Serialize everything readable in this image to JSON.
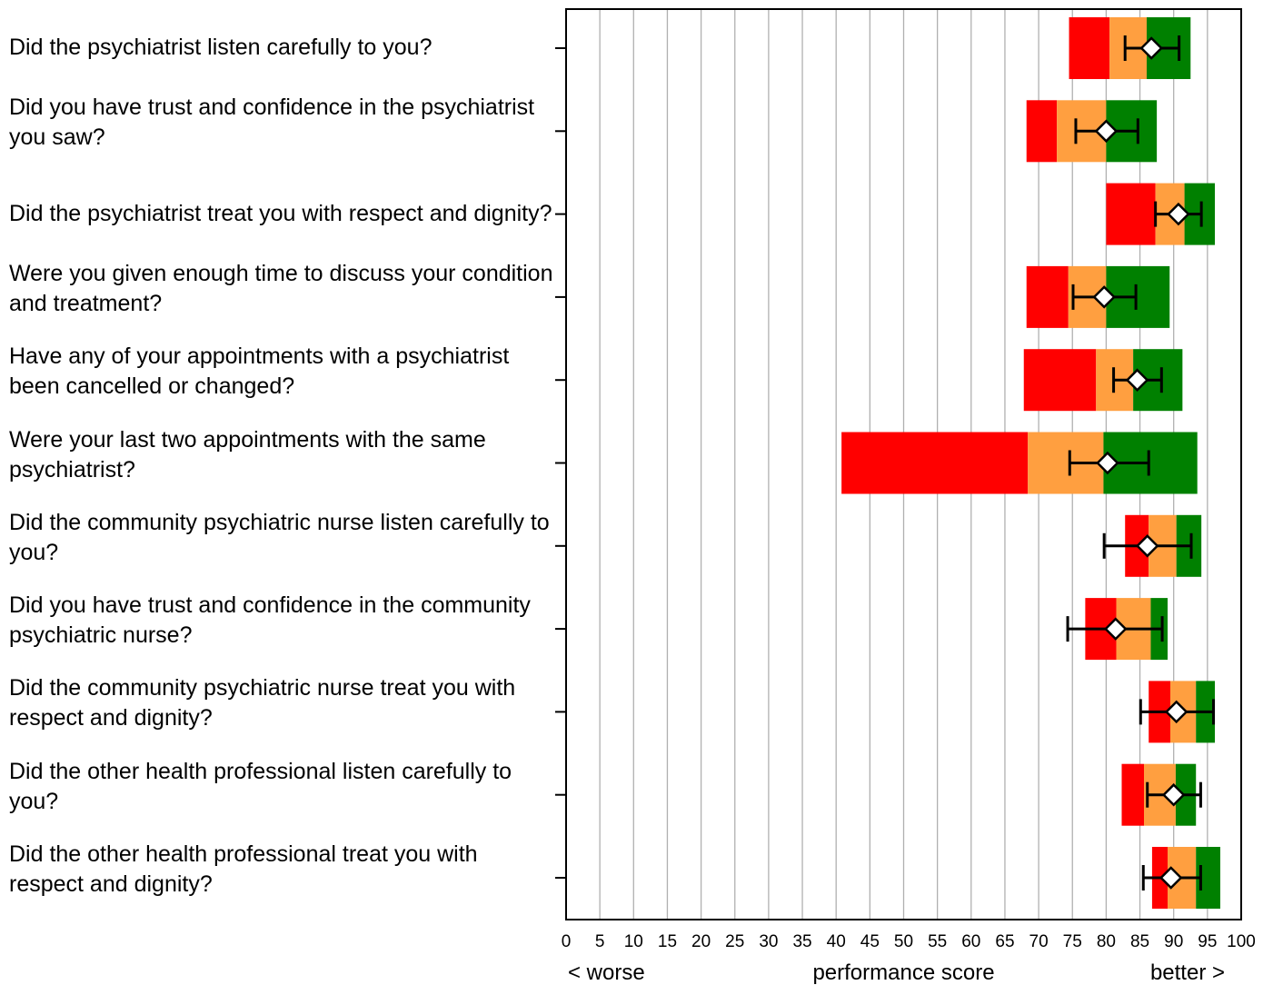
{
  "colors": {
    "red": "#ff0000",
    "orange": "#ff9f40",
    "green": "#008000",
    "grid": "#b0b0b0",
    "axis": "#000000"
  },
  "chart_data": {
    "type": "bar",
    "orientation": "horizontal",
    "xlim": [
      0,
      100
    ],
    "xticks": [
      "0",
      "5",
      "10",
      "15",
      "20",
      "25",
      "30",
      "35",
      "40",
      "45",
      "50",
      "55",
      "60",
      "65",
      "70",
      "75",
      "80",
      "85",
      "90",
      "95",
      "100"
    ],
    "xlabel": "performance score",
    "x_left_note": "< worse",
    "x_right_note": "better >",
    "grid": true,
    "legend": "none",
    "series": [
      {
        "name": "",
        "color": "#ff0000"
      },
      {
        "name": "",
        "color": "#ff9f40"
      },
      {
        "name": "",
        "color": "#008000"
      }
    ],
    "rows": [
      {
        "question": "Did the psychiatrist listen carefully to you?",
        "red": [
          74.5,
          80.5
        ],
        "orange": [
          80.5,
          86.0
        ],
        "green": [
          86.0,
          92.5
        ],
        "score": 86.7,
        "ci": [
          82.8,
          90.8
        ]
      },
      {
        "question": "Did you have trust and confidence in the psychiatrist you saw?",
        "red": [
          68.2,
          72.7
        ],
        "orange": [
          72.7,
          80.0
        ],
        "green": [
          80.0,
          87.5
        ],
        "score": 80.0,
        "ci": [
          75.5,
          84.7
        ]
      },
      {
        "question": "Did the psychiatrist treat you with respect and dignity?",
        "red": [
          80.0,
          87.3
        ],
        "orange": [
          87.3,
          91.6
        ],
        "green": [
          91.6,
          96.1
        ],
        "score": 90.7,
        "ci": [
          87.3,
          94.1
        ]
      },
      {
        "question": "Were you given enough time to discuss your condition and treatment?",
        "red": [
          68.2,
          74.4
        ],
        "orange": [
          74.4,
          80.0
        ],
        "green": [
          80.0,
          89.4
        ],
        "score": 79.7,
        "ci": [
          75.1,
          84.4
        ]
      },
      {
        "question": "Have any of your appointments with a psychiatrist been cancelled or changed?",
        "red": [
          67.8,
          78.5
        ],
        "orange": [
          78.5,
          84.0
        ],
        "green": [
          84.0,
          91.3
        ],
        "score": 84.6,
        "ci": [
          81.1,
          88.2
        ]
      },
      {
        "question": "Were your last two appointments with the same psychiatrist?",
        "red": [
          40.8,
          68.4
        ],
        "orange": [
          68.4,
          79.6
        ],
        "green": [
          79.6,
          93.5
        ],
        "score": 80.2,
        "ci": [
          74.6,
          86.3
        ]
      },
      {
        "question": "Did the community psychiatric nurse listen carefully to you?",
        "red": [
          82.8,
          86.3
        ],
        "orange": [
          86.3,
          90.4
        ],
        "green": [
          90.4,
          94.1
        ],
        "score": 86.1,
        "ci": [
          79.7,
          92.6
        ]
      },
      {
        "question": "Did you have trust and confidence in the community psychiatric nurse?",
        "red": [
          76.9,
          81.5
        ],
        "orange": [
          81.5,
          86.6
        ],
        "green": [
          86.6,
          89.1
        ],
        "score": 81.4,
        "ci": [
          74.3,
          88.3
        ]
      },
      {
        "question": "Did the community psychiatric nurse treat you with respect and dignity?",
        "red": [
          86.3,
          89.5
        ],
        "orange": [
          89.5,
          93.3
        ],
        "green": [
          93.3,
          96.1
        ],
        "score": 90.4,
        "ci": [
          85.1,
          95.9
        ]
      },
      {
        "question": "Did the other health professional listen carefully to you?",
        "red": [
          82.3,
          85.6
        ],
        "orange": [
          85.6,
          90.3
        ],
        "green": [
          90.3,
          93.3
        ],
        "score": 90.0,
        "ci": [
          86.1,
          94.0
        ]
      },
      {
        "question": "Did the other health professional treat you with respect and dignity?",
        "red": [
          86.8,
          89.1
        ],
        "orange": [
          89.1,
          93.3
        ],
        "green": [
          93.3,
          96.9
        ],
        "score": 89.6,
        "ci": [
          85.5,
          94.0
        ]
      }
    ]
  }
}
